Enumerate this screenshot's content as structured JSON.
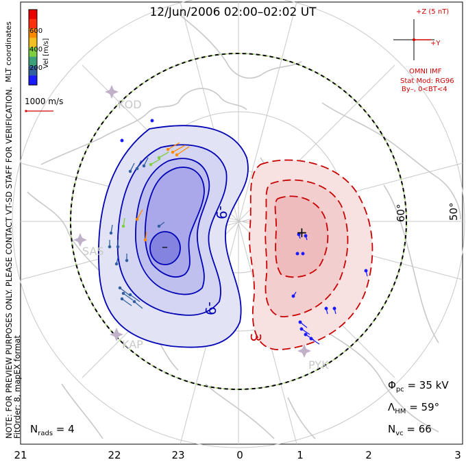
{
  "title": "12/Jun/2006 02:00–02:02 UT",
  "side_notes": {
    "coords": "MLT coordinates",
    "preview": "NOTE: FOR PREVIEW PURPOSES ONLY. PLEASE CONTACT VT-SD STAFF FOR VERIFICATION.",
    "fit": "FitOrder: 8, mapEX format"
  },
  "colorbar": {
    "label": "Vel [m/s]",
    "ticks": [
      "600",
      "400",
      "200"
    ],
    "colors": [
      "#1a1aff",
      "#3060a0",
      "#3ca07a",
      "#7ed040",
      "#f0c020",
      "#ff8c00",
      "#ff3010",
      "#e80000"
    ]
  },
  "scale_vector": "1000 m/s",
  "imf": {
    "z_label": "+Z (5 nT)",
    "y_label": "+Y",
    "source": "OMNI IMF",
    "model": "Stat Mod: RG96",
    "condition": "By–, 0<BT<4"
  },
  "stations": [
    "KOD",
    "SAS",
    "KAP",
    "PYK"
  ],
  "contour_labels": {
    "neg": "-9",
    "neg2": "-9",
    "pos": "3"
  },
  "extrema": {
    "min": "–",
    "max": "+"
  },
  "lat_labels": [
    "60°",
    "50°"
  ],
  "stats": {
    "phi_sym": "Φ",
    "phi_sub": "pc",
    "phi_val": " = 35 kV",
    "lam_sym": "Λ",
    "lam_sub": "HM",
    "lam_val": " = 59°",
    "nvc_sym": "N",
    "nvc_sub": "vc",
    "nvc_val": " = 66",
    "nrad_sym": "N",
    "nrad_sub": "rads",
    "nrad_val": " = 4"
  },
  "mlt_ticks": [
    "21",
    "22",
    "23",
    "0",
    "1",
    "2",
    "3"
  ],
  "colors": {
    "negative": "#0000b4",
    "positive": "#c80000",
    "land": "#c8c8c8",
    "grid": "#c8c8c8"
  }
}
